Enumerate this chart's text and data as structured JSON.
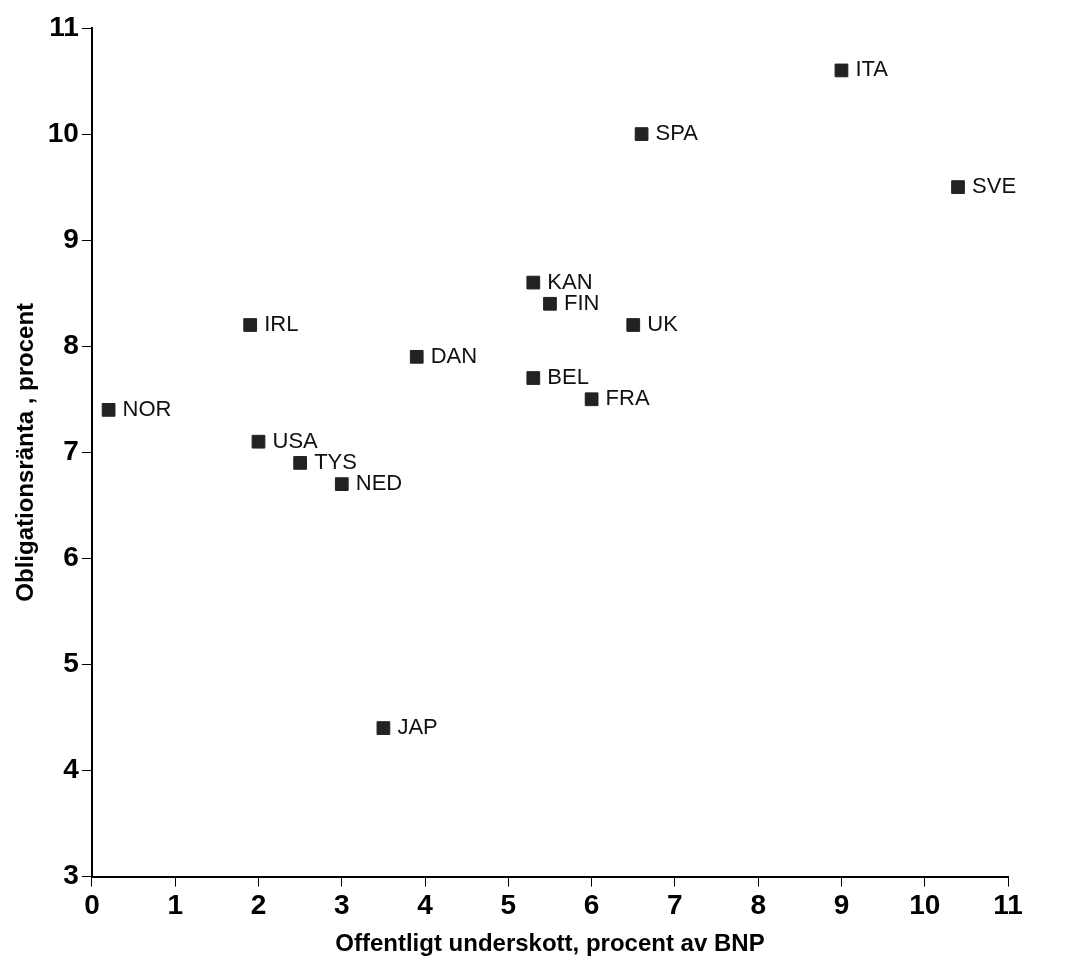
{
  "chart_data": {
    "type": "scatter",
    "xlabel": "Offentligt underskott, procent av BNP",
    "ylabel": "Obligationsränta , procent",
    "x": [
      0.2,
      2.0,
      2.5,
      3.0,
      1.9,
      3.9,
      3.5,
      5.3,
      5.5,
      5.3,
      6.0,
      6.5,
      6.6,
      9.0,
      10.4
    ],
    "series": [
      {
        "color": "#222222",
        "values": [
          7.4,
          7.1,
          6.9,
          6.7,
          8.2,
          7.9,
          4.4,
          8.6,
          8.4,
          7.7,
          7.5,
          8.2,
          10.0,
          10.6,
          9.5
        ]
      }
    ],
    "annotations": [
      {
        "text": "NOR",
        "x": 0.2,
        "y": 7.4
      },
      {
        "text": "USA",
        "x": 2.0,
        "y": 7.1
      },
      {
        "text": "TYS",
        "x": 2.5,
        "y": 6.9
      },
      {
        "text": "NED",
        "x": 3.0,
        "y": 6.7
      },
      {
        "text": "IRL",
        "x": 1.9,
        "y": 8.2
      },
      {
        "text": "DAN",
        "x": 3.9,
        "y": 7.9
      },
      {
        "text": "JAP",
        "x": 3.5,
        "y": 4.4
      },
      {
        "text": "KAN",
        "x": 5.3,
        "y": 8.6
      },
      {
        "text": "FIN",
        "x": 5.5,
        "y": 8.4
      },
      {
        "text": "BEL",
        "x": 5.3,
        "y": 7.7
      },
      {
        "text": "FRA",
        "x": 6.0,
        "y": 7.5
      },
      {
        "text": "UK",
        "x": 6.5,
        "y": 8.2
      },
      {
        "text": "SPA",
        "x": 6.6,
        "y": 10.0
      },
      {
        "text": "ITA",
        "x": 9.0,
        "y": 10.6
      },
      {
        "text": "SVE",
        "x": 10.4,
        "y": 9.5
      }
    ],
    "xlim": [
      0,
      11
    ],
    "xticks": [
      0,
      1,
      2,
      3,
      4,
      5,
      6,
      7,
      8,
      9,
      10,
      11
    ],
    "ylim": [
      3,
      11
    ],
    "yticks": [
      3,
      4,
      5,
      6,
      7,
      8,
      9,
      10,
      11
    ],
    "marker": "square",
    "grid": false,
    "legend": false
  }
}
